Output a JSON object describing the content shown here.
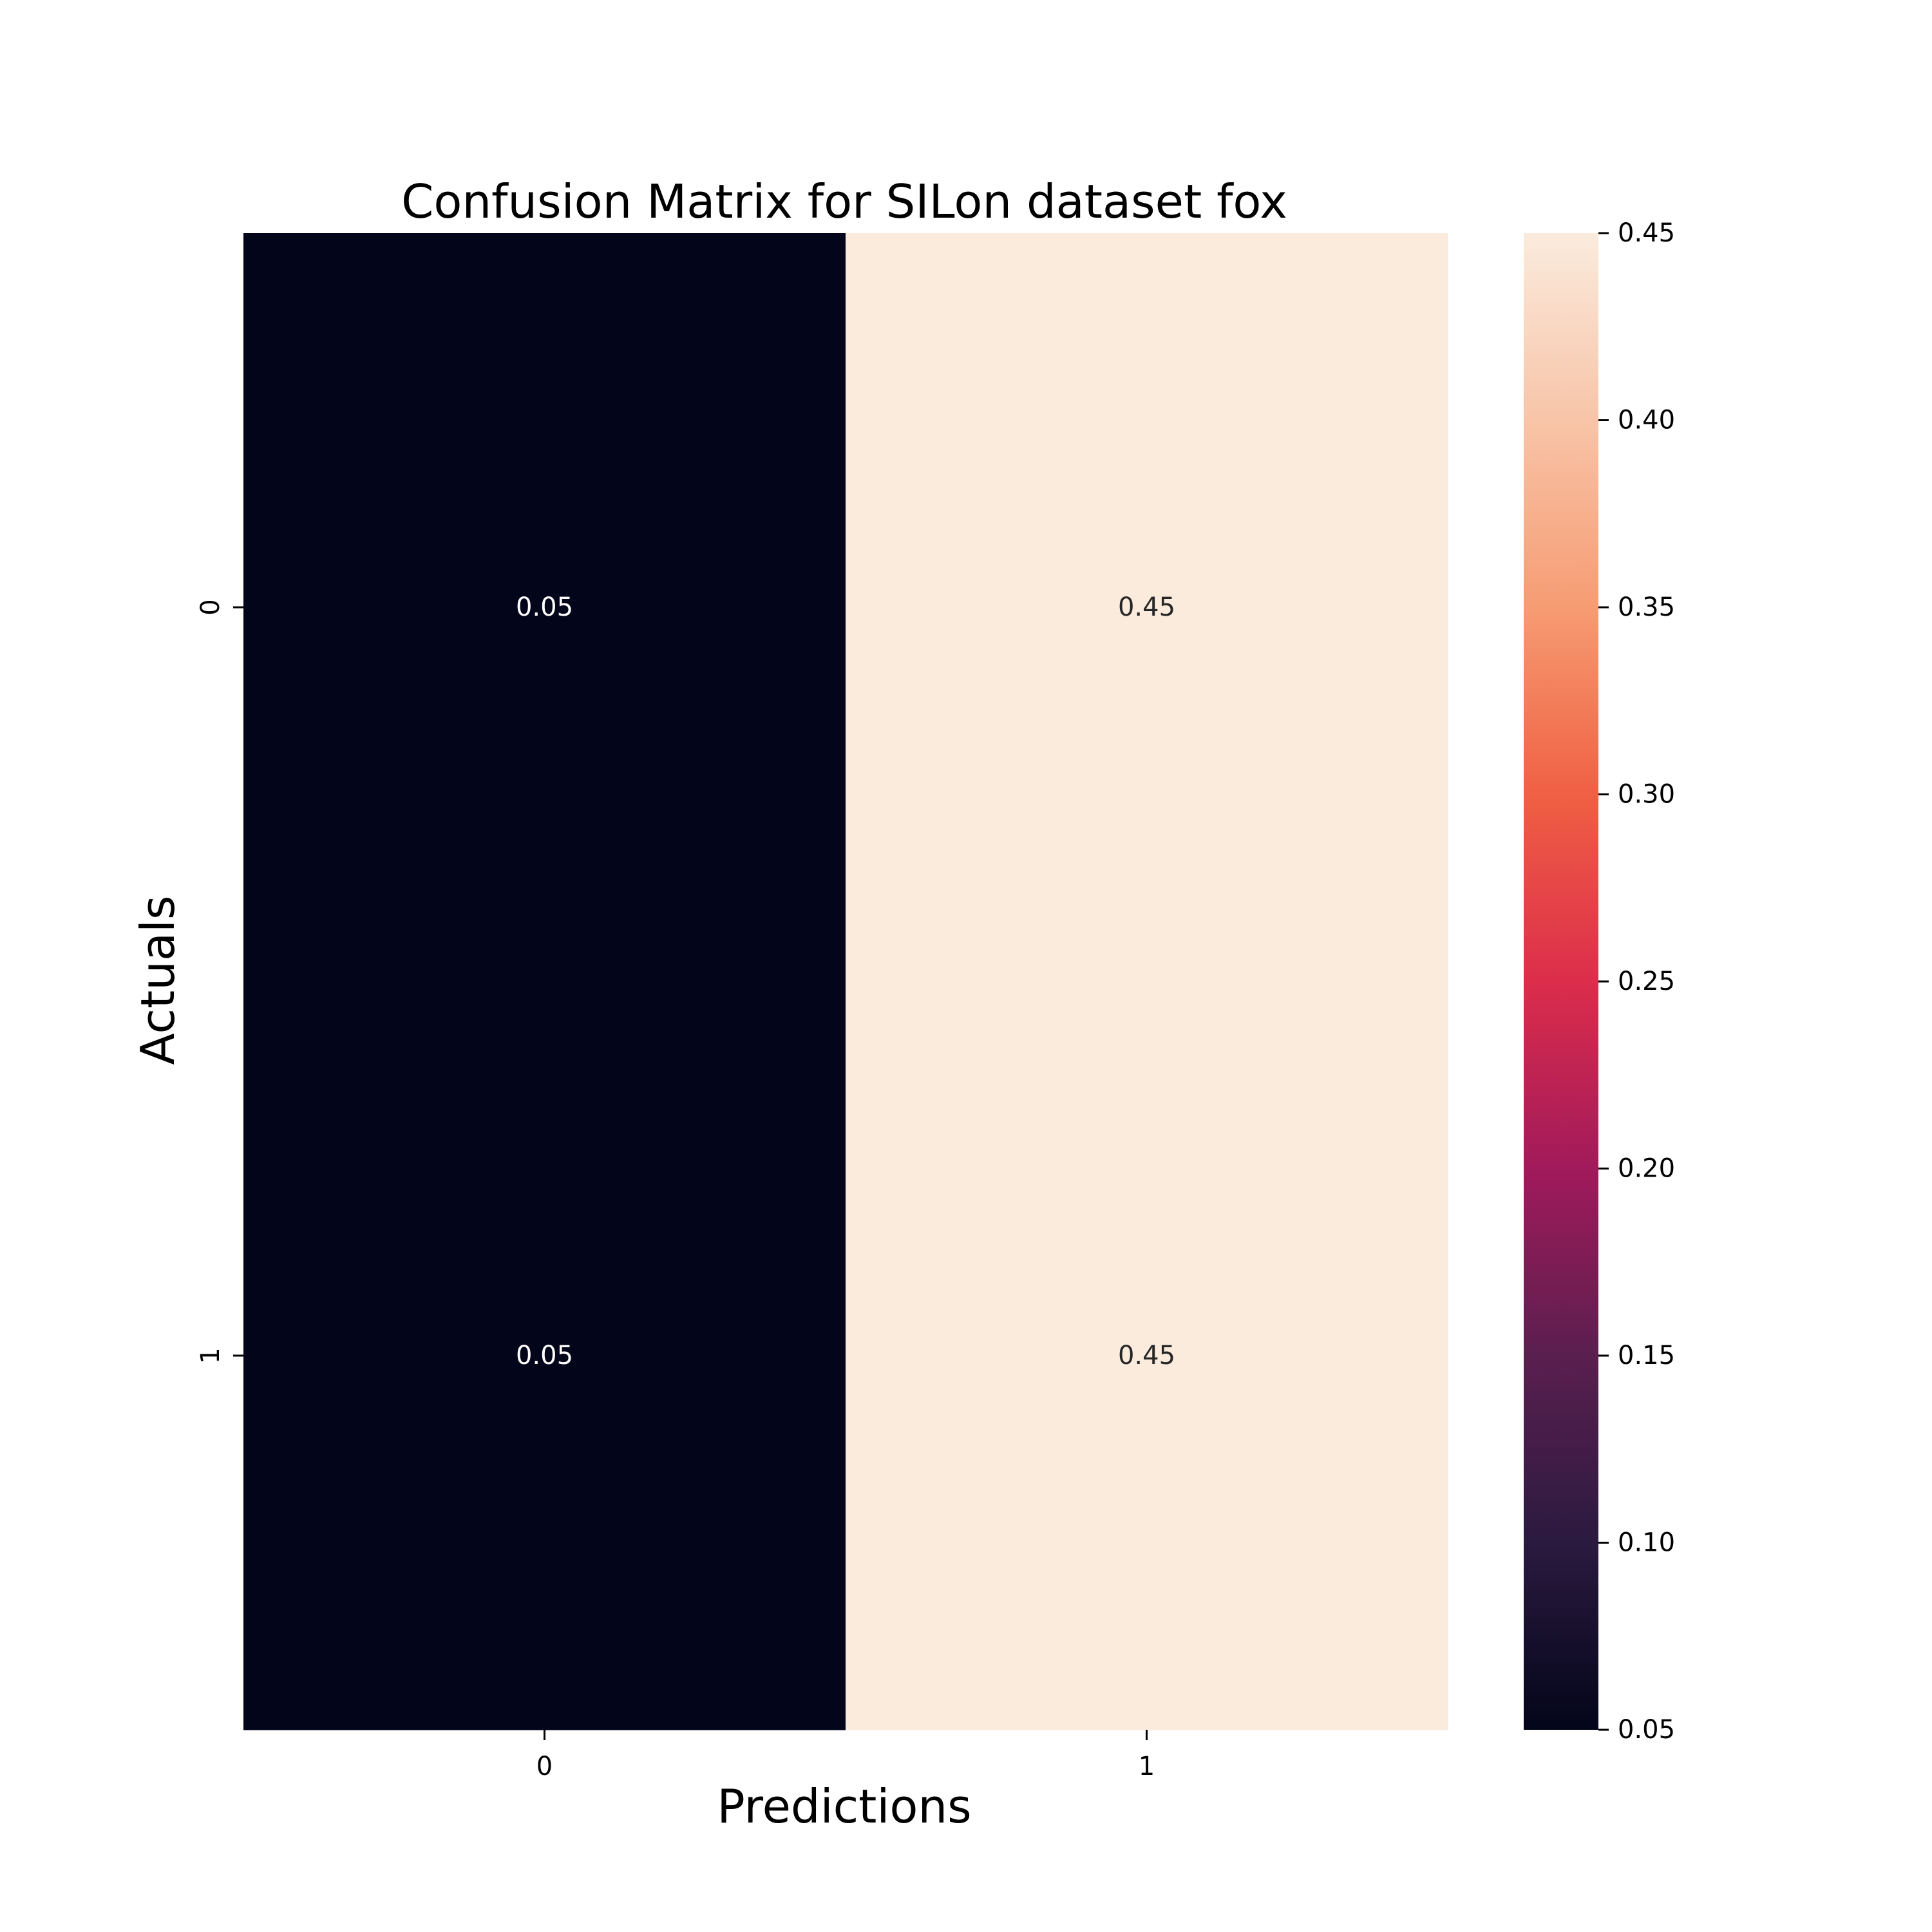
{
  "chart_data": {
    "type": "heatmap",
    "title": "Confusion Matrix for SILon dataset fox",
    "xlabel": "Predictions",
    "ylabel": "Actuals",
    "x_categories": [
      "0",
      "1"
    ],
    "y_categories": [
      "0",
      "1"
    ],
    "values": [
      [
        0.05,
        0.45
      ],
      [
        0.05,
        0.45
      ]
    ],
    "cell_labels": [
      [
        "0.05",
        "0.45"
      ],
      [
        "0.05",
        "0.45"
      ]
    ],
    "colorbar": {
      "min": 0.05,
      "max": 0.45,
      "ticks": [
        "0.05",
        "0.10",
        "0.15",
        "0.20",
        "0.25",
        "0.30",
        "0.35",
        "0.40",
        "0.45"
      ],
      "colormap": "rocket",
      "colors": [
        "#03051a",
        "#2b1a3f",
        "#5a1f4f",
        "#a11a5b",
        "#dc2d4b",
        "#f06043",
        "#f69c73",
        "#f8c4a8",
        "#faebdd"
      ]
    },
    "grid": false
  }
}
